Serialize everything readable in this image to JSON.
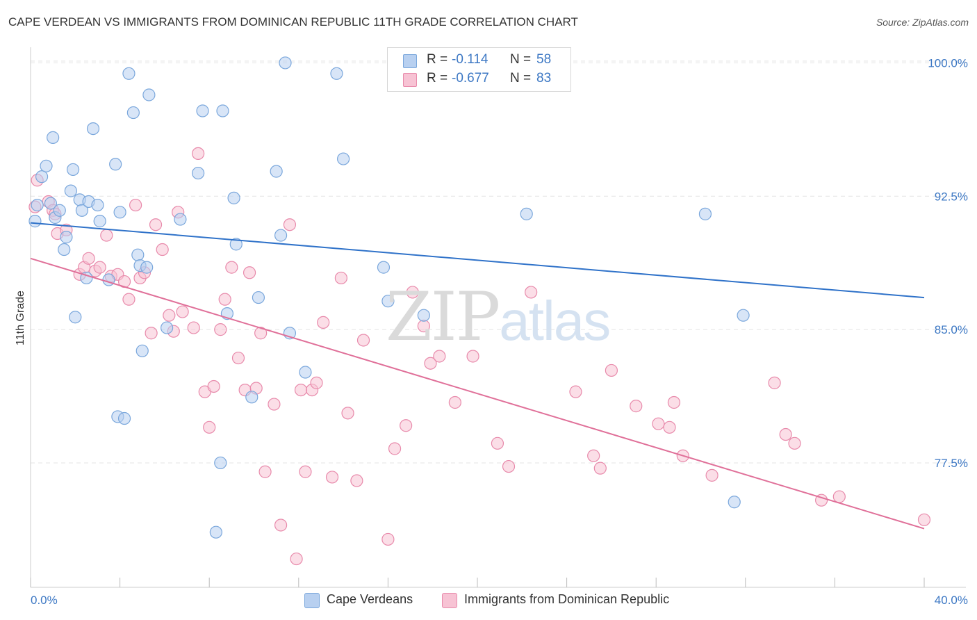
{
  "title": "CAPE VERDEAN VS IMMIGRANTS FROM DOMINICAN REPUBLIC 11TH GRADE CORRELATION CHART",
  "source": "Source: ZipAtlas.com",
  "watermark": {
    "zip": "ZIP",
    "atlas": "atlas"
  },
  "legend": {
    "r_label": "R =",
    "n_label": "N =",
    "rows": [
      {
        "r": "-0.114",
        "n": "58"
      },
      {
        "r": "-0.677",
        "n": "83"
      }
    ]
  },
  "bottom_legend": [
    "Cape Verdeans",
    "Immigrants from Dominican Republic"
  ],
  "colors": {
    "blue_fill": "#b8d0f0",
    "blue_stroke": "#7aa7dc",
    "blue_line": "#2f72c9",
    "pink_fill": "#f7c3d4",
    "pink_stroke": "#e88aab",
    "pink_line": "#e07099",
    "axis_label": "#3d78c4",
    "grid": "#e4e4e4"
  },
  "chart_data": {
    "type": "scatter",
    "title": "CAPE VERDEAN VS IMMIGRANTS FROM DOMINICAN REPUBLIC 11TH GRADE CORRELATION CHART",
    "xlabel": "",
    "ylabel": "11th Grade",
    "xlim": [
      0,
      40
    ],
    "ylim": [
      70.5,
      100.8
    ],
    "x_tick_labels": [
      {
        "value": 0,
        "label": "0.0%"
      },
      {
        "value": 40,
        "label": "40.0%"
      }
    ],
    "x_minor_ticks": [
      0,
      4,
      8,
      12,
      16,
      20,
      24,
      28,
      32,
      36,
      40
    ],
    "y_ticks": [
      {
        "value": 100,
        "label": "100.0%"
      },
      {
        "value": 92.5,
        "label": "92.5%"
      },
      {
        "value": 85,
        "label": "85.0%"
      },
      {
        "value": 77.5,
        "label": "77.5%"
      }
    ],
    "grid": true,
    "legend_position": "top-center",
    "series": [
      {
        "name": "Cape Verdeans",
        "color": "#b8d0f0",
        "trend": [
          [
            0,
            91.0
          ],
          [
            40,
            86.8
          ]
        ],
        "points": [
          [
            0.2,
            91.1
          ],
          [
            0.3,
            92.0
          ],
          [
            0.5,
            93.6
          ],
          [
            0.7,
            94.2
          ],
          [
            0.9,
            92.1
          ],
          [
            1.0,
            95.8
          ],
          [
            1.1,
            91.3
          ],
          [
            1.3,
            91.7
          ],
          [
            1.5,
            89.5
          ],
          [
            1.6,
            90.2
          ],
          [
            1.8,
            92.8
          ],
          [
            1.9,
            94.0
          ],
          [
            2.0,
            85.7
          ],
          [
            2.2,
            92.3
          ],
          [
            2.3,
            91.7
          ],
          [
            2.5,
            87.9
          ],
          [
            2.6,
            92.2
          ],
          [
            2.8,
            96.3
          ],
          [
            3.0,
            92.0
          ],
          [
            3.1,
            91.1
          ],
          [
            3.5,
            87.8
          ],
          [
            3.8,
            94.3
          ],
          [
            3.9,
            80.1
          ],
          [
            4.0,
            91.6
          ],
          [
            4.2,
            80.0
          ],
          [
            4.4,
            99.4
          ],
          [
            4.6,
            97.2
          ],
          [
            4.8,
            89.2
          ],
          [
            4.9,
            88.6
          ],
          [
            5.0,
            83.8
          ],
          [
            5.2,
            88.5
          ],
          [
            5.3,
            98.2
          ],
          [
            6.1,
            85.1
          ],
          [
            6.7,
            91.2
          ],
          [
            7.5,
            93.8
          ],
          [
            7.7,
            97.3
          ],
          [
            8.3,
            73.6
          ],
          [
            8.5,
            77.5
          ],
          [
            8.6,
            97.3
          ],
          [
            8.8,
            85.9
          ],
          [
            9.1,
            92.4
          ],
          [
            9.2,
            89.8
          ],
          [
            9.9,
            81.2
          ],
          [
            10.2,
            86.8
          ],
          [
            11.0,
            93.9
          ],
          [
            11.2,
            90.3
          ],
          [
            11.4,
            100.0
          ],
          [
            11.6,
            84.8
          ],
          [
            12.3,
            82.6
          ],
          [
            13.7,
            99.4
          ],
          [
            14.0,
            94.6
          ],
          [
            15.8,
            88.5
          ],
          [
            16.0,
            86.6
          ],
          [
            17.6,
            85.8
          ],
          [
            22.2,
            91.5
          ],
          [
            30.2,
            91.5
          ],
          [
            31.5,
            75.3
          ],
          [
            31.9,
            85.8
          ]
        ]
      },
      {
        "name": "Immigrants from Dominican Republic",
        "color": "#f7c3d4",
        "trend": [
          [
            0,
            89.0
          ],
          [
            40,
            73.8
          ]
        ],
        "points": [
          [
            0.2,
            91.9
          ],
          [
            0.3,
            93.4
          ],
          [
            0.8,
            92.2
          ],
          [
            1.0,
            91.7
          ],
          [
            1.1,
            91.5
          ],
          [
            1.2,
            90.4
          ],
          [
            1.6,
            90.6
          ],
          [
            2.2,
            88.1
          ],
          [
            2.4,
            88.5
          ],
          [
            2.6,
            89.0
          ],
          [
            2.9,
            88.3
          ],
          [
            3.1,
            88.5
          ],
          [
            3.4,
            90.3
          ],
          [
            3.6,
            88.0
          ],
          [
            3.9,
            88.1
          ],
          [
            4.2,
            87.7
          ],
          [
            4.4,
            86.7
          ],
          [
            4.7,
            92.0
          ],
          [
            4.9,
            87.9
          ],
          [
            5.1,
            88.2
          ],
          [
            5.4,
            84.8
          ],
          [
            5.6,
            90.9
          ],
          [
            5.9,
            89.5
          ],
          [
            6.2,
            85.8
          ],
          [
            6.4,
            84.9
          ],
          [
            6.6,
            91.6
          ],
          [
            6.8,
            86.0
          ],
          [
            7.3,
            85.1
          ],
          [
            7.5,
            94.9
          ],
          [
            7.8,
            81.5
          ],
          [
            8.0,
            79.5
          ],
          [
            8.2,
            81.8
          ],
          [
            8.5,
            85.0
          ],
          [
            8.7,
            86.7
          ],
          [
            9.0,
            88.5
          ],
          [
            9.3,
            83.4
          ],
          [
            9.6,
            81.6
          ],
          [
            9.8,
            88.2
          ],
          [
            10.1,
            81.7
          ],
          [
            10.3,
            84.8
          ],
          [
            10.5,
            77.0
          ],
          [
            10.9,
            80.8
          ],
          [
            11.2,
            74.0
          ],
          [
            11.6,
            90.9
          ],
          [
            11.9,
            72.1
          ],
          [
            12.1,
            81.6
          ],
          [
            12.3,
            77.0
          ],
          [
            12.6,
            81.6
          ],
          [
            12.8,
            82.0
          ],
          [
            13.1,
            85.4
          ],
          [
            13.5,
            76.7
          ],
          [
            13.9,
            87.9
          ],
          [
            14.2,
            80.3
          ],
          [
            14.6,
            76.5
          ],
          [
            14.9,
            84.4
          ],
          [
            16.0,
            73.2
          ],
          [
            16.3,
            78.3
          ],
          [
            16.8,
            79.6
          ],
          [
            17.1,
            87.1
          ],
          [
            17.6,
            85.2
          ],
          [
            17.9,
            83.1
          ],
          [
            18.3,
            83.5
          ],
          [
            19.0,
            80.9
          ],
          [
            19.8,
            83.5
          ],
          [
            20.9,
            78.6
          ],
          [
            21.4,
            77.3
          ],
          [
            22.4,
            87.1
          ],
          [
            24.4,
            81.5
          ],
          [
            25.2,
            77.9
          ],
          [
            25.5,
            77.2
          ],
          [
            26.0,
            82.7
          ],
          [
            27.1,
            80.7
          ],
          [
            28.1,
            79.7
          ],
          [
            28.6,
            79.5
          ],
          [
            28.8,
            80.9
          ],
          [
            29.2,
            77.9
          ],
          [
            30.5,
            76.8
          ],
          [
            33.3,
            82.0
          ],
          [
            33.8,
            79.1
          ],
          [
            34.2,
            78.6
          ],
          [
            35.4,
            75.4
          ],
          [
            36.2,
            75.6
          ],
          [
            40.0,
            74.3
          ]
        ]
      }
    ]
  }
}
